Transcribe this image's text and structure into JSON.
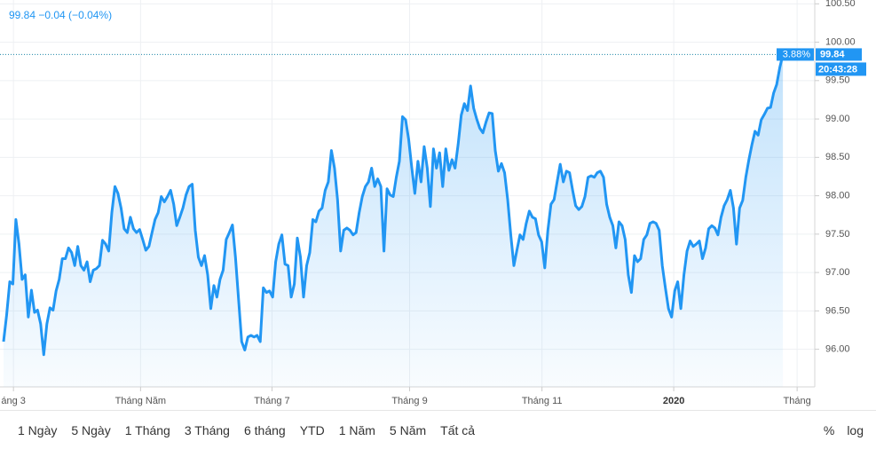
{
  "chart_data": {
    "type": "line",
    "legend_text": "99.84 −0.04 (−0.04%)",
    "values": [
      96.1,
      96.45,
      96.88,
      96.85,
      97.69,
      97.37,
      96.91,
      96.97,
      96.42,
      96.77,
      96.48,
      96.51,
      96.33,
      95.93,
      96.33,
      96.54,
      96.51,
      96.76,
      96.91,
      97.18,
      97.18,
      97.32,
      97.26,
      97.09,
      97.34,
      97.09,
      97.03,
      97.14,
      96.88,
      97.03,
      97.05,
      97.09,
      97.42,
      97.37,
      97.28,
      97.78,
      98.12,
      98.03,
      97.84,
      97.57,
      97.52,
      97.72,
      97.57,
      97.52,
      97.56,
      97.43,
      97.29,
      97.34,
      97.52,
      97.69,
      97.78,
      97.99,
      97.92,
      97.99,
      98.07,
      97.89,
      97.61,
      97.72,
      97.84,
      98.01,
      98.12,
      98.15,
      97.55,
      97.2,
      97.09,
      97.22,
      96.97,
      96.53,
      96.83,
      96.68,
      96.91,
      97.03,
      97.43,
      97.52,
      97.62,
      97.2,
      96.65,
      96.1,
      95.99,
      96.16,
      96.18,
      96.16,
      96.18,
      96.1,
      96.8,
      96.74,
      96.76,
      96.68,
      97.14,
      97.37,
      97.49,
      97.11,
      97.09,
      96.68,
      96.85,
      97.45,
      97.2,
      96.68,
      97.09,
      97.26,
      97.69,
      97.66,
      97.8,
      97.84,
      98.07,
      98.18,
      98.59,
      98.36,
      97.95,
      97.28,
      97.55,
      97.58,
      97.55,
      97.49,
      97.52,
      97.78,
      97.99,
      98.12,
      98.18,
      98.36,
      98.12,
      98.22,
      98.12,
      97.28,
      98.09,
      98.01,
      97.99,
      98.24,
      98.45,
      99.03,
      98.99,
      98.73,
      98.36,
      98.03,
      98.45,
      98.18,
      98.64,
      98.36,
      97.86,
      98.61,
      98.36,
      98.56,
      98.12,
      98.61,
      98.33,
      98.47,
      98.36,
      98.67,
      99.05,
      99.2,
      99.11,
      99.43,
      99.14,
      99.0,
      98.88,
      98.82,
      98.96,
      99.08,
      99.07,
      98.59,
      98.32,
      98.42,
      98.3,
      97.95,
      97.49,
      97.09,
      97.29,
      97.49,
      97.43,
      97.64,
      97.8,
      97.72,
      97.7,
      97.49,
      97.4,
      97.06,
      97.55,
      97.89,
      97.95,
      98.18,
      98.41,
      98.18,
      98.32,
      98.3,
      98.07,
      97.87,
      97.82,
      97.86,
      97.99,
      98.24,
      98.26,
      98.24,
      98.3,
      98.32,
      98.24,
      97.89,
      97.72,
      97.61,
      97.32,
      97.66,
      97.61,
      97.43,
      96.97,
      96.74,
      97.22,
      97.14,
      97.18,
      97.43,
      97.49,
      97.64,
      97.66,
      97.64,
      97.55,
      97.09,
      96.8,
      96.53,
      96.42,
      96.76,
      96.88,
      96.53,
      96.97,
      97.28,
      97.41,
      97.34,
      97.37,
      97.41,
      97.18,
      97.32,
      97.57,
      97.61,
      97.58,
      97.49,
      97.72,
      97.87,
      97.95,
      98.07,
      97.84,
      97.37,
      97.84,
      97.94,
      98.24,
      98.47,
      98.67,
      98.84,
      98.79,
      98.99,
      99.06,
      99.14,
      99.15,
      99.34,
      99.45,
      99.67,
      99.84
    ],
    "color": "#2196f3",
    "xlim": [
      -1.15,
      262.3
    ],
    "xticks": [
      {
        "value": 3.2,
        "label": "áng 3"
      },
      {
        "value": 44.3,
        "label": "Tháng Năm"
      },
      {
        "value": 86.8,
        "label": "Tháng 7"
      },
      {
        "value": 131.3,
        "label": "Tháng 9"
      },
      {
        "value": 174.1,
        "label": "Tháng 11"
      },
      {
        "value": 216.7,
        "label": "2020"
      },
      {
        "value": 256.6,
        "label": "Tháng"
      }
    ],
    "ylim": [
      95.51,
      100.55
    ],
    "yticks": [
      {
        "value": 96,
        "label": "96.00"
      },
      {
        "value": 96.5,
        "label": "96.50"
      },
      {
        "value": 97,
        "label": "97.00"
      },
      {
        "value": 97.5,
        "label": "97.50"
      },
      {
        "value": 98,
        "label": "98.00"
      },
      {
        "value": 98.5,
        "label": "98.50"
      },
      {
        "value": 99,
        "label": "99.00"
      },
      {
        "value": 99.5,
        "label": "99.50"
      },
      {
        "value": 100,
        "label": "100.00"
      },
      {
        "value": 100.5,
        "label": "100.50"
      }
    ],
    "grid": true,
    "last_price": 99.84,
    "change_label": "3.88%",
    "time_label": "20:43:28",
    "range_buttons": [
      "1 Ngày",
      "5 Ngày",
      "1 Tháng",
      "3 Tháng",
      "6 tháng",
      "YTD",
      "1 Năm",
      "5 Năm",
      "Tất cả"
    ],
    "scale_buttons": [
      "%",
      "log"
    ]
  }
}
